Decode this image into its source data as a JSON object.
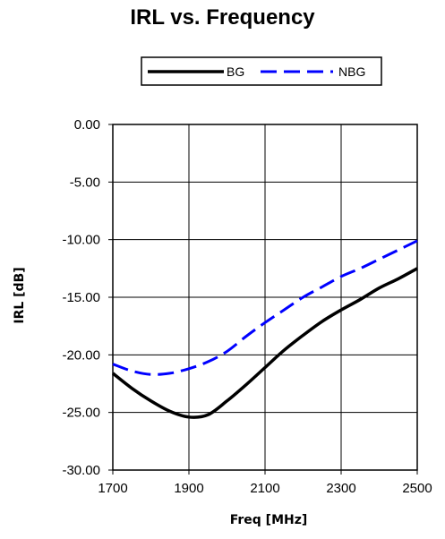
{
  "chart_data": {
    "type": "line",
    "title": "IRL vs. Frequency",
    "xlabel": "Freq [MHz]",
    "ylabel": "IRL [dB]",
    "xlim": [
      1700,
      2500
    ],
    "ylim": [
      -30,
      0
    ],
    "x_ticks": [
      "1700",
      "1900",
      "2100",
      "2300",
      "2500"
    ],
    "y_ticks": [
      "0.00",
      "-5.00",
      "-10.00",
      "-15.00",
      "-20.00",
      "-25.00",
      "-30.00"
    ],
    "grid": true,
    "legend_position": "top",
    "series": [
      {
        "name": "BG",
        "color": "#000000",
        "style": "solid",
        "x": [
          1700,
          1750,
          1800,
          1850,
          1900,
          1950,
          2000,
          2050,
          2100,
          2150,
          2200,
          2250,
          2300,
          2350,
          2400,
          2450,
          2500
        ],
        "y": [
          -21.6,
          -22.9,
          -24.0,
          -24.9,
          -25.4,
          -25.2,
          -24.0,
          -22.6,
          -21.1,
          -19.6,
          -18.3,
          -17.1,
          -16.1,
          -15.2,
          -14.2,
          -13.4,
          -12.5
        ]
      },
      {
        "name": "NBG",
        "color": "#0000ff",
        "style": "dashed",
        "x": [
          1700,
          1750,
          1800,
          1850,
          1900,
          1950,
          2000,
          2050,
          2100,
          2150,
          2200,
          2250,
          2300,
          2350,
          2400,
          2450,
          2500
        ],
        "y": [
          -20.8,
          -21.4,
          -21.7,
          -21.6,
          -21.2,
          -20.6,
          -19.7,
          -18.4,
          -17.2,
          -16.1,
          -15.0,
          -14.1,
          -13.2,
          -12.5,
          -11.7,
          -10.9,
          -10.1
        ]
      }
    ]
  }
}
